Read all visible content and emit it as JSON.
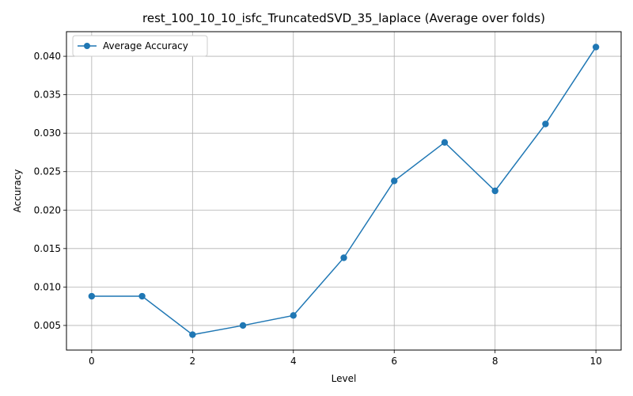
{
  "chart_data": {
    "type": "line",
    "title": "rest_100_10_10_isfc_TruncatedSVD_35_laplace (Average over folds)",
    "xlabel": "Level",
    "ylabel": "Accuracy",
    "x": [
      0,
      1,
      2,
      3,
      4,
      5,
      6,
      7,
      8,
      9,
      10
    ],
    "series": [
      {
        "name": "Average Accuracy",
        "color": "#1f77b4",
        "marker": "circle",
        "values": [
          0.0088,
          0.0088,
          0.0038,
          0.005,
          0.0063,
          0.0138,
          0.0238,
          0.0288,
          0.0225,
          0.0312,
          0.0412
        ]
      }
    ],
    "xlim": [
      -0.5,
      10.5
    ],
    "ylim": [
      0.0018,
      0.0432
    ],
    "xticks": [
      0,
      2,
      4,
      6,
      8,
      10
    ],
    "xtick_labels": [
      "0",
      "2",
      "4",
      "6",
      "8",
      "10"
    ],
    "yticks": [
      0.005,
      0.01,
      0.015,
      0.02,
      0.025,
      0.03,
      0.035,
      0.04
    ],
    "ytick_labels": [
      "0.005",
      "0.010",
      "0.015",
      "0.020",
      "0.025",
      "0.030",
      "0.035",
      "0.040"
    ],
    "grid": true,
    "legend_position": "upper-left"
  }
}
